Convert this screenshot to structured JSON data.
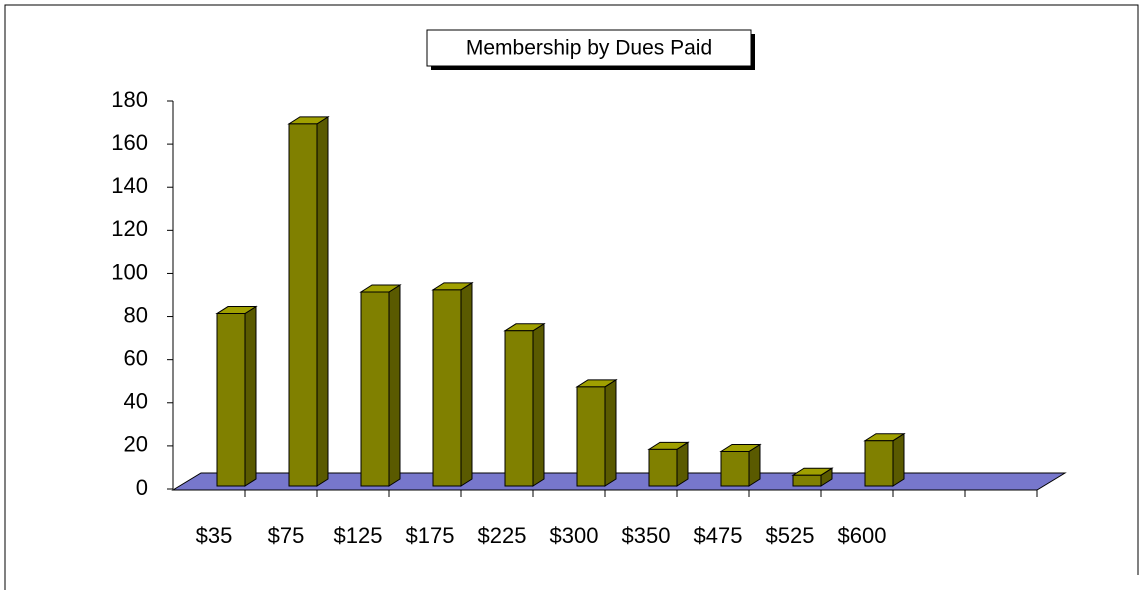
{
  "chart_data": {
    "type": "bar3d",
    "title": "Membership by Dues Paid",
    "categories": [
      "$35",
      "$75",
      "$125",
      "$175",
      "$225",
      "$300",
      "$350",
      "$475",
      "$525",
      "$600",
      null,
      null
    ],
    "values": [
      80,
      168,
      90,
      91,
      72,
      46,
      17,
      16,
      5,
      21,
      null,
      null
    ],
    "color": "#808000",
    "floor_color": "#7777cc",
    "ylim": [
      0,
      180
    ],
    "yticks": [
      0,
      20,
      40,
      60,
      80,
      100,
      120,
      140,
      160,
      180
    ],
    "grid": false
  }
}
